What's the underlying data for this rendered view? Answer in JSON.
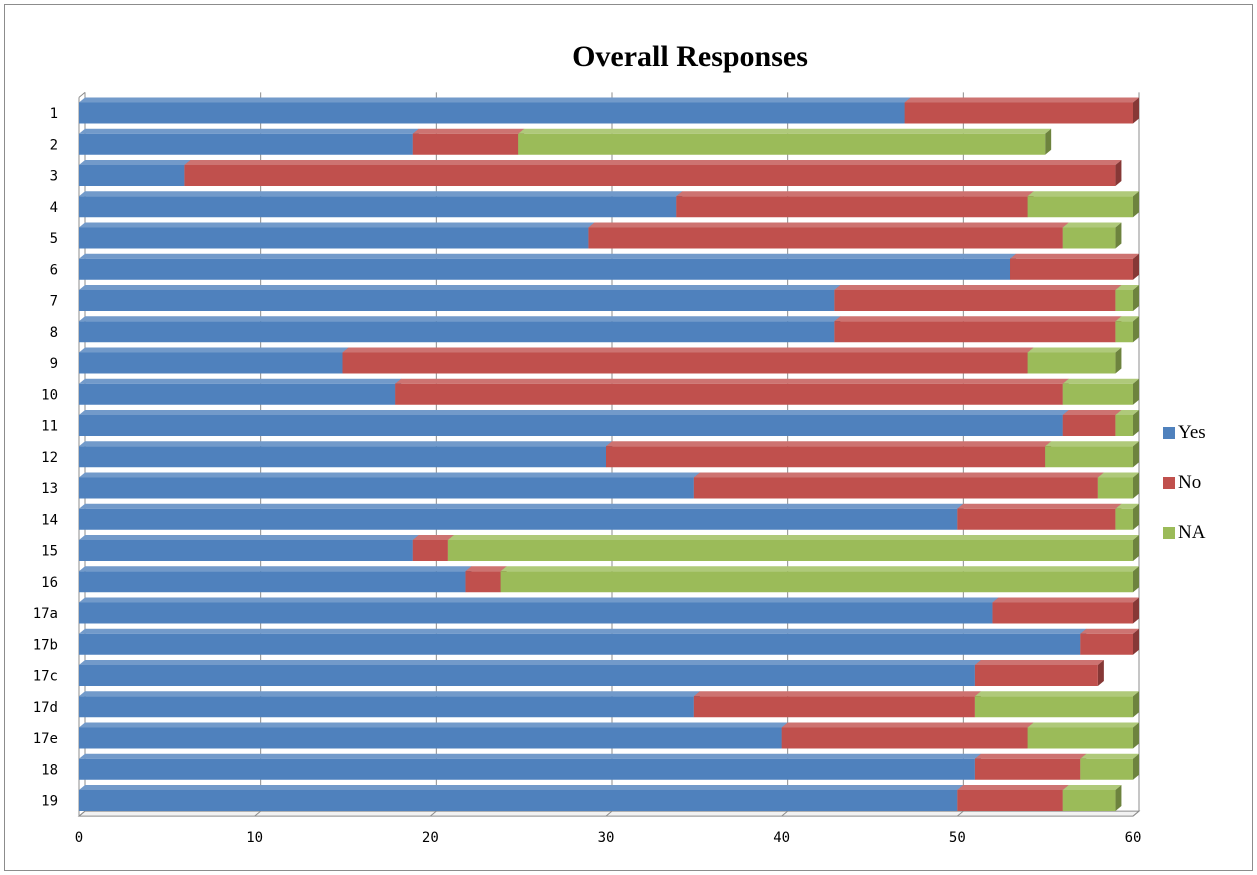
{
  "chart_data": {
    "type": "bar",
    "orientation": "horizontal",
    "stacked": true,
    "title": "Overall Responses",
    "categories": [
      "1",
      "2",
      "3",
      "4",
      "5",
      "6",
      "7",
      "8",
      "9",
      "10",
      "11",
      "12",
      "13",
      "14",
      "15",
      "16",
      "17a",
      "17b",
      "17c",
      "17d",
      "17e",
      "18",
      "19"
    ],
    "series": [
      {
        "name": "Yes",
        "color": "#4f81bd",
        "values": [
          47,
          19,
          6,
          34,
          29,
          53,
          43,
          43,
          15,
          18,
          56,
          30,
          35,
          50,
          19,
          22,
          52,
          57,
          51,
          35,
          40,
          51,
          50
        ]
      },
      {
        "name": "No",
        "color": "#c0504d",
        "values": [
          13,
          6,
          53,
          20,
          27,
          7,
          16,
          16,
          39,
          38,
          3,
          25,
          23,
          9,
          2,
          2,
          8,
          3,
          7,
          16,
          14,
          6,
          6
        ]
      },
      {
        "name": "NA",
        "color": "#9bbb59",
        "values": [
          0,
          30,
          0,
          6,
          3,
          0,
          1,
          1,
          5,
          4,
          1,
          5,
          2,
          1,
          39,
          36,
          0,
          0,
          0,
          9,
          6,
          3,
          3
        ]
      }
    ],
    "xlim": [
      0,
      60
    ],
    "xticks": [
      0,
      10,
      20,
      30,
      40,
      50,
      60
    ],
    "grid": "vertical major gridlines",
    "legend": "right",
    "style": "3-D clustered stacked bar"
  }
}
